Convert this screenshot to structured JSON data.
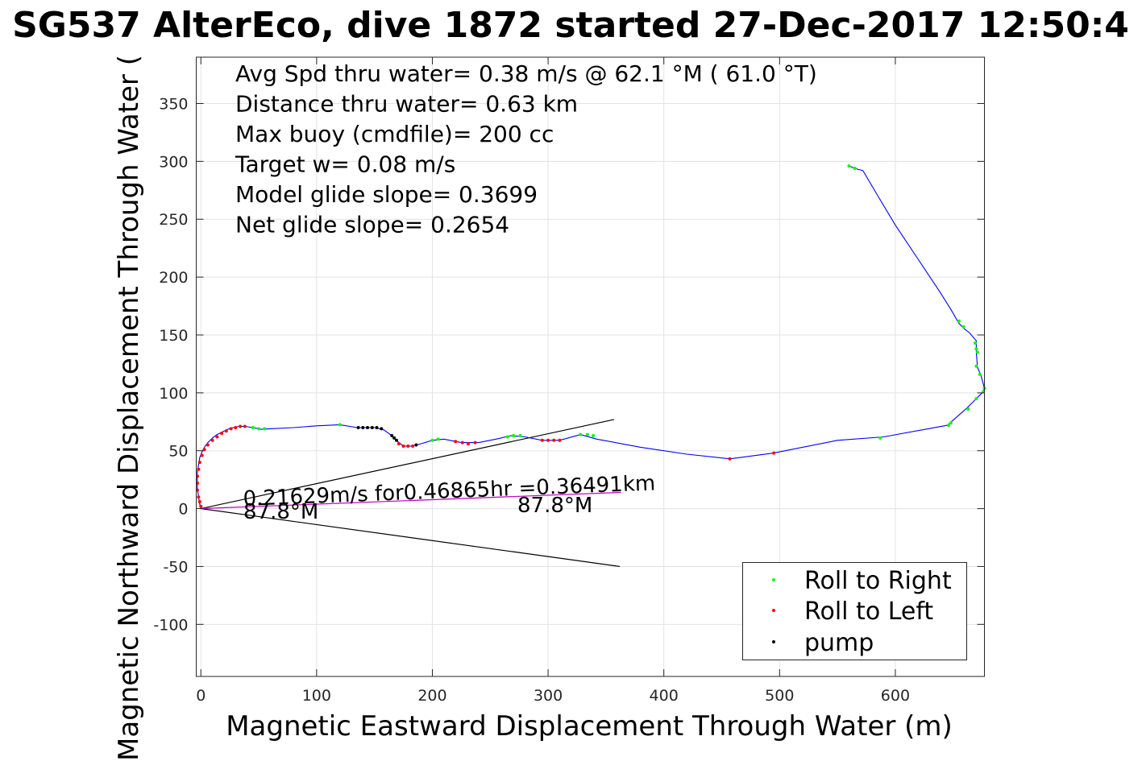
{
  "chart_data": {
    "type": "scatter",
    "title": "SG537 AlterEco, dive 1872 started 27-Dec-2017 12:50:4",
    "xlabel": "Magnetic Eastward Displacement Through Water (m)",
    "ylabel": "Magnetic Northward Displacement Through Water (",
    "xlim": [
      -4,
      677
    ],
    "ylim": [
      -145,
      390
    ],
    "xticks": [
      0,
      100,
      200,
      300,
      400,
      500,
      600
    ],
    "xtick_labels": [
      "0",
      "100",
      "200",
      "300",
      "400",
      "500",
      "600"
    ],
    "yticks": [
      -100,
      -50,
      0,
      50,
      100,
      150,
      200,
      250,
      300,
      350
    ],
    "ytick_labels": [
      "-100",
      "-50",
      "0",
      "50",
      "100",
      "150",
      "200",
      "250",
      "300",
      "350"
    ],
    "grid": true,
    "legend_position": "bottom-right",
    "legend": [
      {
        "label": "Roll to Right",
        "color": "#00ff00"
      },
      {
        "label": "Roll to Left",
        "color": "#ff0000"
      },
      {
        "label": "pump",
        "color": "#000000"
      }
    ],
    "annotations": [
      "Avg Spd thru water=  0.38 m/s @  62.1 °M ( 61.0 °T)",
      "Distance thru water=  0.63 km",
      "Max buoy (cmdfile)= 200 cc",
      "Target w= 0.08 m/s",
      "Model glide slope= 0.3699",
      "Net glide slope= 0.2654"
    ],
    "current_text": "0.21629m/s for0.46865hr =0.36491km",
    "heading_labels": [
      "87.8°M",
      "87.8°M"
    ],
    "track": [
      [
        0,
        0
      ],
      [
        -1,
        4
      ],
      [
        -2,
        10
      ],
      [
        -3,
        18
      ],
      [
        -3,
        25
      ],
      [
        -3,
        32
      ],
      [
        -2,
        38
      ],
      [
        -1,
        44
      ],
      [
        1,
        49
      ],
      [
        3,
        53
      ],
      [
        6,
        57
      ],
      [
        10,
        61
      ],
      [
        14,
        64
      ],
      [
        18,
        66
      ],
      [
        23,
        68.5
      ],
      [
        28,
        70
      ],
      [
        33,
        71
      ],
      [
        38,
        71
      ],
      [
        45,
        70
      ],
      [
        52,
        68.5
      ],
      [
        60,
        69
      ],
      [
        80,
        70
      ],
      [
        100,
        71.5
      ],
      [
        120,
        72.5
      ],
      [
        135,
        70
      ],
      [
        150,
        70
      ],
      [
        158,
        68
      ],
      [
        165,
        63
      ],
      [
        170,
        58
      ],
      [
        175,
        54
      ],
      [
        182,
        54
      ],
      [
        190,
        56
      ],
      [
        200,
        59
      ],
      [
        210,
        60
      ],
      [
        225,
        57
      ],
      [
        240,
        57
      ],
      [
        255,
        60
      ],
      [
        268,
        63
      ],
      [
        280,
        62
      ],
      [
        295,
        59
      ],
      [
        310,
        59
      ],
      [
        328,
        64
      ],
      [
        342,
        60
      ],
      [
        380,
        53
      ],
      [
        420,
        47
      ],
      [
        457,
        43
      ],
      [
        495,
        48
      ],
      [
        550,
        59
      ],
      [
        590,
        62
      ],
      [
        645,
        72
      ],
      [
        662,
        87
      ],
      [
        670,
        95
      ],
      [
        676,
        101
      ],
      [
        677,
        104
      ],
      [
        674,
        115
      ],
      [
        671,
        122
      ],
      [
        670,
        135
      ],
      [
        670,
        145
      ],
      [
        664,
        152
      ],
      [
        660,
        155
      ],
      [
        655,
        160
      ],
      [
        648,
        172
      ],
      [
        638,
        188
      ],
      [
        620,
        215
      ],
      [
        600,
        245
      ],
      [
        585,
        270
      ],
      [
        572,
        292
      ],
      [
        568,
        293
      ],
      [
        565,
        294
      ],
      [
        560,
        296
      ]
    ],
    "current_vector": [
      [
        0,
        0
      ],
      [
        363,
        14
      ]
    ],
    "heading_lines": [
      [
        [
          0,
          0
        ],
        [
          357,
          77
        ]
      ],
      [
        [
          0,
          0
        ],
        [
          362,
          -50
        ]
      ]
    ],
    "roll_right_points": [
      [
        45,
        70
      ],
      [
        50,
        69
      ],
      [
        55,
        69
      ],
      [
        120,
        72.5
      ],
      [
        200,
        59
      ],
      [
        205,
        60
      ],
      [
        265,
        62
      ],
      [
        270,
        63
      ],
      [
        276,
        63
      ],
      [
        328,
        64
      ],
      [
        334,
        64
      ],
      [
        339,
        63
      ],
      [
        587,
        61
      ],
      [
        646,
        72
      ],
      [
        648,
        74
      ],
      [
        663,
        86
      ],
      [
        670,
        95
      ],
      [
        676,
        101
      ],
      [
        677,
        104
      ],
      [
        673,
        116
      ],
      [
        670,
        123
      ],
      [
        671,
        135
      ],
      [
        670,
        138
      ],
      [
        669,
        143
      ],
      [
        655,
        162
      ],
      [
        659,
        157
      ],
      [
        565,
        294
      ],
      [
        560,
        296
      ]
    ],
    "roll_left_points": [
      [
        0,
        2
      ],
      [
        -1,
        6
      ],
      [
        -2,
        10
      ],
      [
        -3,
        16
      ],
      [
        -3,
        22
      ],
      [
        -3,
        28
      ],
      [
        -2,
        34
      ],
      [
        -1,
        40
      ],
      [
        1,
        46
      ],
      [
        3,
        51
      ],
      [
        6,
        55
      ],
      [
        10,
        59
      ],
      [
        14,
        62
      ],
      [
        18,
        65
      ],
      [
        22,
        67
      ],
      [
        26,
        69
      ],
      [
        30,
        70
      ],
      [
        34,
        71
      ],
      [
        38,
        71
      ],
      [
        171,
        56
      ],
      [
        175,
        54
      ],
      [
        179,
        54
      ],
      [
        183,
        54
      ],
      [
        220,
        58
      ],
      [
        226,
        57
      ],
      [
        231,
        56
      ],
      [
        237,
        57
      ],
      [
        295,
        59
      ],
      [
        300,
        59
      ],
      [
        305,
        59
      ],
      [
        310,
        59
      ],
      [
        457,
        43
      ],
      [
        495,
        48
      ]
    ],
    "pump_points": [
      [
        136,
        70
      ],
      [
        140,
        70
      ],
      [
        144,
        70
      ],
      [
        148,
        70
      ],
      [
        152,
        70
      ],
      [
        156,
        69
      ],
      [
        165,
        63
      ],
      [
        167,
        61
      ],
      [
        169,
        59
      ],
      [
        186,
        55
      ]
    ]
  }
}
